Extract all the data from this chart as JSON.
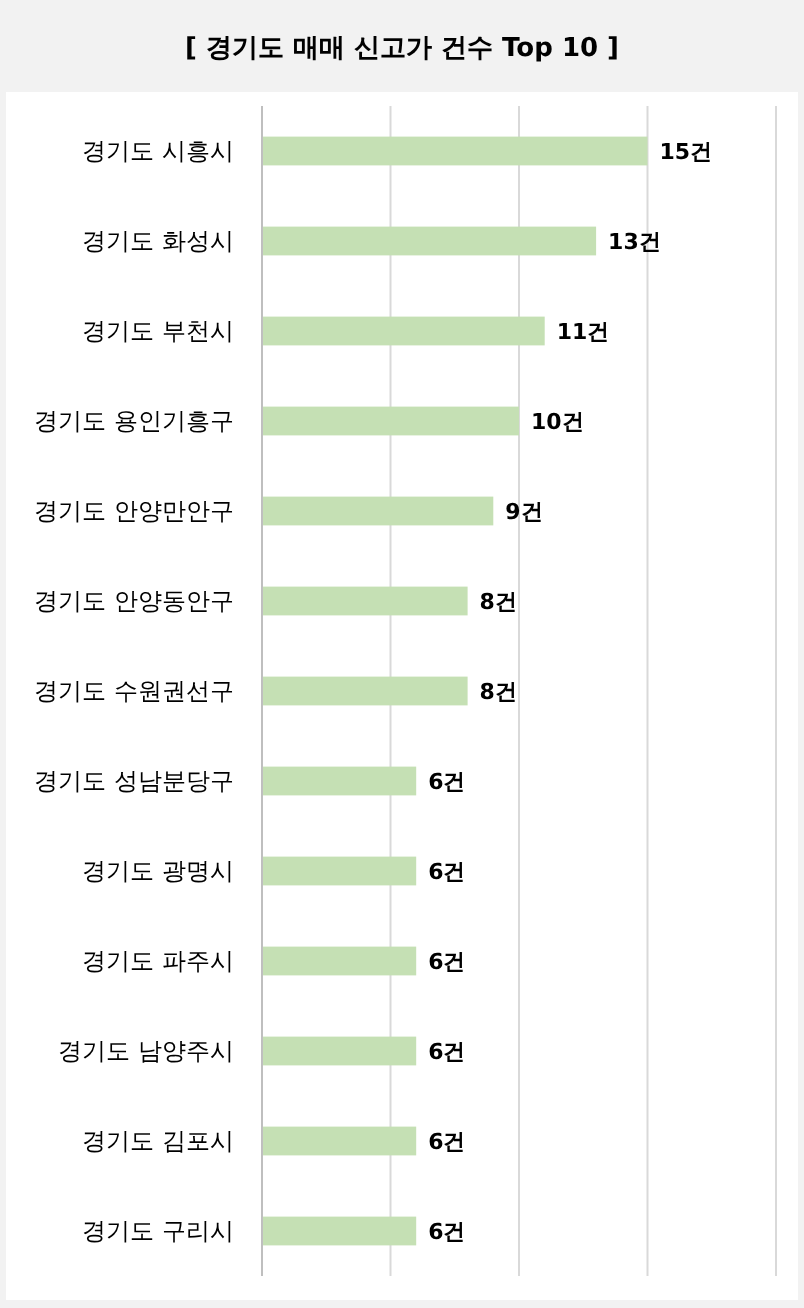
{
  "chart_data": {
    "type": "bar",
    "orientation": "horizontal",
    "title": "[ 경기도 매매 신고가 건수 Top 10 ]",
    "categories": [
      "경기도 시흥시",
      "경기도 화성시",
      "경기도 부천시",
      "경기도 용인기흥구",
      "경기도 안양만안구",
      "경기도 안양동안구",
      "경기도 수원권선구",
      "경기도 성남분당구",
      "경기도 광명시",
      "경기도 파주시",
      "경기도 남양주시",
      "경기도 김포시",
      "경기도 구리시"
    ],
    "values": [
      15,
      13,
      11,
      10,
      9,
      8,
      8,
      6,
      6,
      6,
      6,
      6,
      6
    ],
    "value_labels": [
      "15건",
      "13건",
      "11건",
      "10건",
      "9건",
      "8건",
      "8건",
      "6건",
      "6건",
      "6건",
      "6건",
      "6건",
      "6건"
    ],
    "color": "#c5e0b4",
    "xlim": [
      0,
      20
    ],
    "xticks": [
      {
        "value": 0,
        "label": null
      },
      {
        "value": 5,
        "label": null
      },
      {
        "value": 10,
        "label": null
      },
      {
        "value": 15,
        "label": null
      },
      {
        "value": 20,
        "label": null
      }
    ],
    "grid": "x",
    "tick_labels": "y"
  }
}
